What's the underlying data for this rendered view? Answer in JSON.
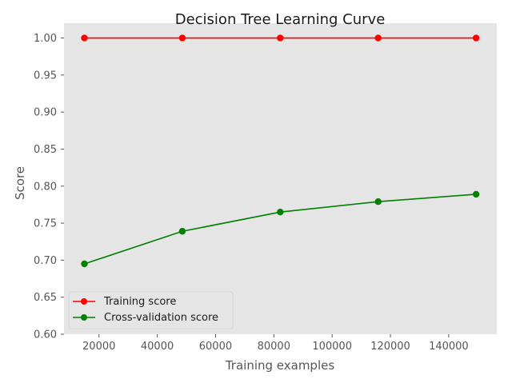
{
  "chart_data": {
    "type": "line",
    "title": "Decision Tree Learning Curve",
    "xlabel": "Training examples",
    "ylabel": "Score",
    "xlim": [
      8000,
      156500
    ],
    "ylim": [
      0.6,
      1.02
    ],
    "grid": false,
    "legend_position": "lower-left",
    "x": [
      15000,
      48600,
      82200,
      115800,
      149400
    ],
    "xticks": [
      20000,
      40000,
      60000,
      80000,
      100000,
      120000,
      140000
    ],
    "xtick_labels": [
      "20000",
      "40000",
      "60000",
      "80000",
      "100000",
      "120000",
      "140000"
    ],
    "yticks": [
      0.6,
      0.65,
      0.7,
      0.75,
      0.8,
      0.85,
      0.9,
      0.95,
      1.0
    ],
    "ytick_labels": [
      "0.60",
      "0.65",
      "0.70",
      "0.75",
      "0.80",
      "0.85",
      "0.90",
      "0.95",
      "1.00"
    ],
    "series": [
      {
        "name": "Training score",
        "color": "#ff0000",
        "values": [
          1.0,
          1.0,
          1.0,
          1.0,
          1.0
        ]
      },
      {
        "name": "Cross-validation score",
        "color": "#008000",
        "values": [
          0.695,
          0.739,
          0.765,
          0.779,
          0.789
        ]
      }
    ],
    "colors": {
      "plot_background": "#e5e5e5",
      "text": "#555555"
    }
  }
}
